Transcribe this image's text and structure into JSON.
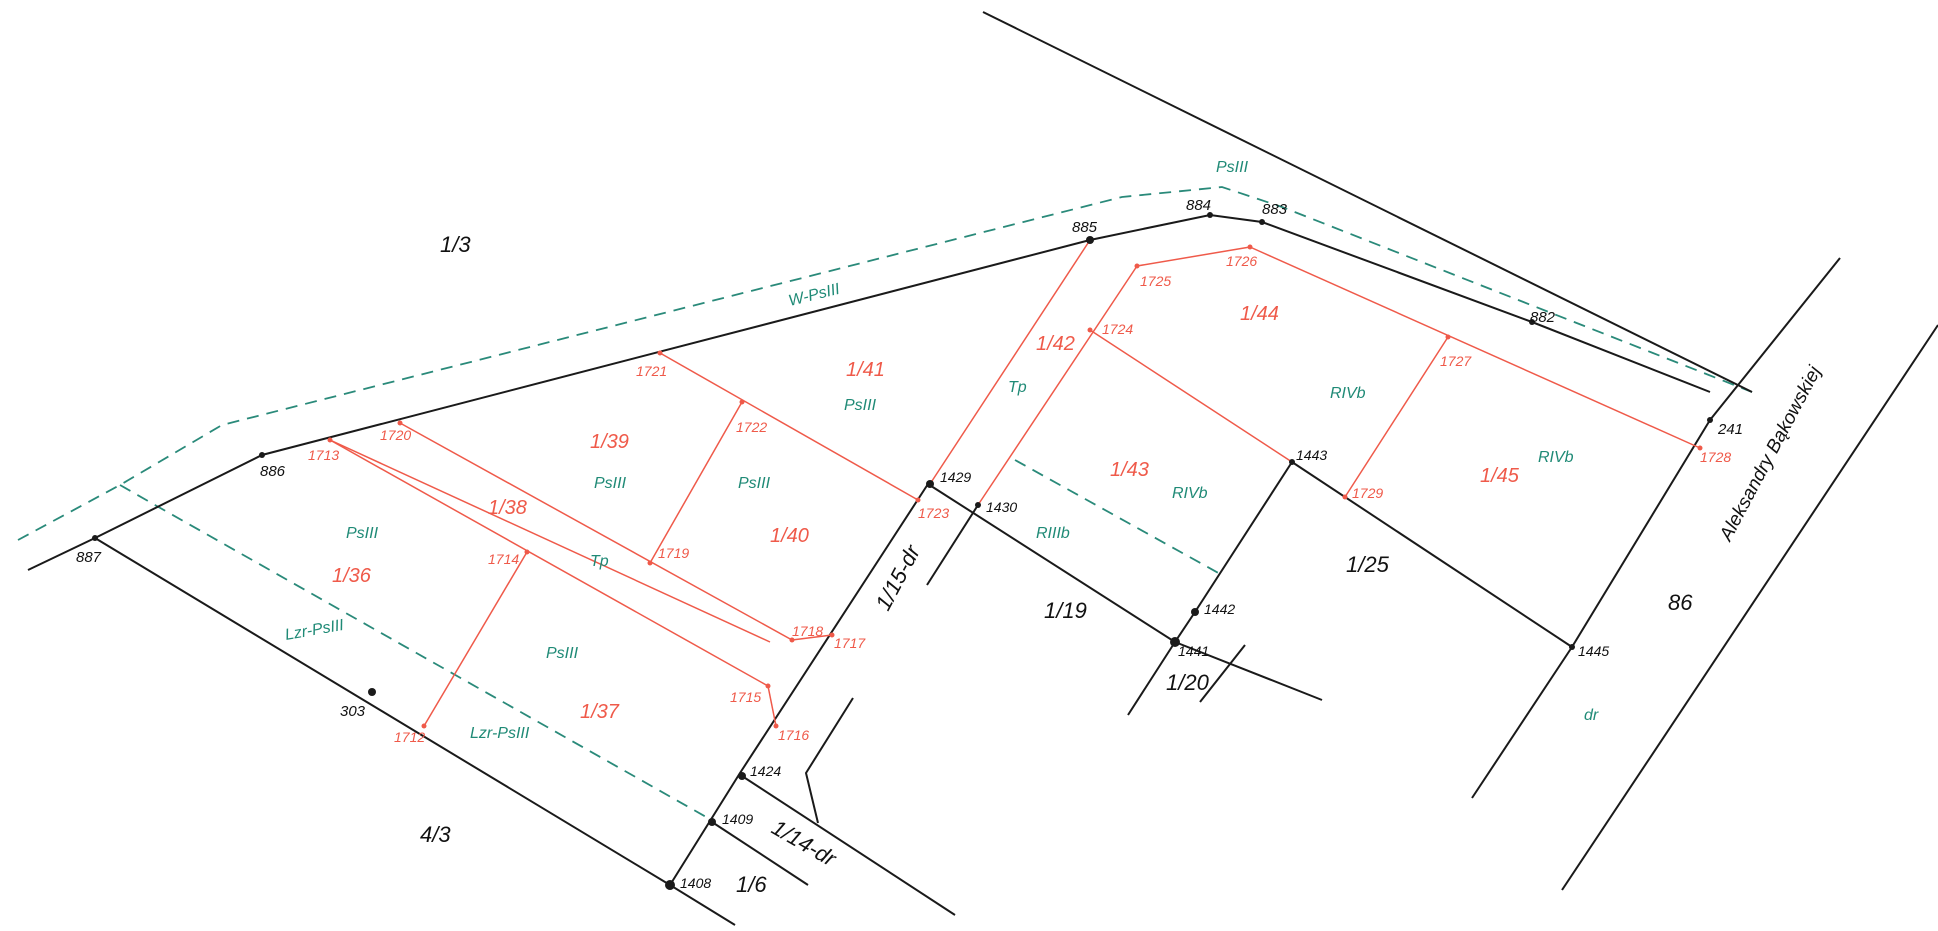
{
  "colors": {
    "boundary": "#1a1a1a",
    "subdivision": "#ef5a4a",
    "land_use": "#2a8a7a",
    "background": "#ffffff"
  },
  "street": {
    "name": "Aleksandry Bąkowskiej"
  },
  "parcels_existing": {
    "p_1_3": "1/3",
    "p_4_3": "4/3",
    "p_1_6": "1/6",
    "p_1_14": "1/14-dr",
    "p_1_15": "1/15-dr",
    "p_1_19": "1/19",
    "p_1_20": "1/20",
    "p_1_25": "1/25",
    "p_86": "86"
  },
  "parcels_new": {
    "p_1_36": "1/36",
    "p_1_37": "1/37",
    "p_1_38": "1/38",
    "p_1_39": "1/39",
    "p_1_40": "1/40",
    "p_1_41": "1/41",
    "p_1_42": "1/42",
    "p_1_43": "1/43",
    "p_1_44": "1/44",
    "p_1_45": "1/45"
  },
  "land_use": {
    "top": "PsIII",
    "w_psiii": "W-PsIII",
    "lzr_psiii_1": "Lzr-PsIII",
    "lzr_psiii_2": "Lzr-PsIII",
    "psiii_136": "PsIII",
    "psiii_137": "PsIII",
    "psiii_139": "PsIII",
    "psiii_140": "PsIII",
    "psiii_141": "PsIII",
    "tp_138": "Tp",
    "tp_142": "Tp",
    "rivb_143": "RIVb",
    "rivb_144": "RIVb",
    "rivb_145": "RIVb",
    "riiib": "RIIIb",
    "dr": "dr"
  },
  "points_existing": {
    "n887": "887",
    "n886": "886",
    "n885": "885",
    "n884": "884",
    "n883": "883",
    "n882": "882",
    "n241": "241",
    "n303": "303",
    "n1408": "1408",
    "n1409": "1409",
    "n1424": "1424",
    "n1429": "1429",
    "n1430": "1430",
    "n1441": "1441",
    "n1442": "1442",
    "n1443": "1443",
    "n1445": "1445"
  },
  "points_new": {
    "n1712": "1712",
    "n1713": "1713",
    "n1714": "1714",
    "n1715": "1715",
    "n1716": "1716",
    "n1717": "1717",
    "n1718": "1718",
    "n1719": "1719",
    "n1720": "1720",
    "n1721": "1721",
    "n1722": "1722",
    "n1723": "1723",
    "n1724": "1724",
    "n1725": "1725",
    "n1726": "1726",
    "n1727": "1727",
    "n1728": "1728",
    "n1729": "1729"
  }
}
